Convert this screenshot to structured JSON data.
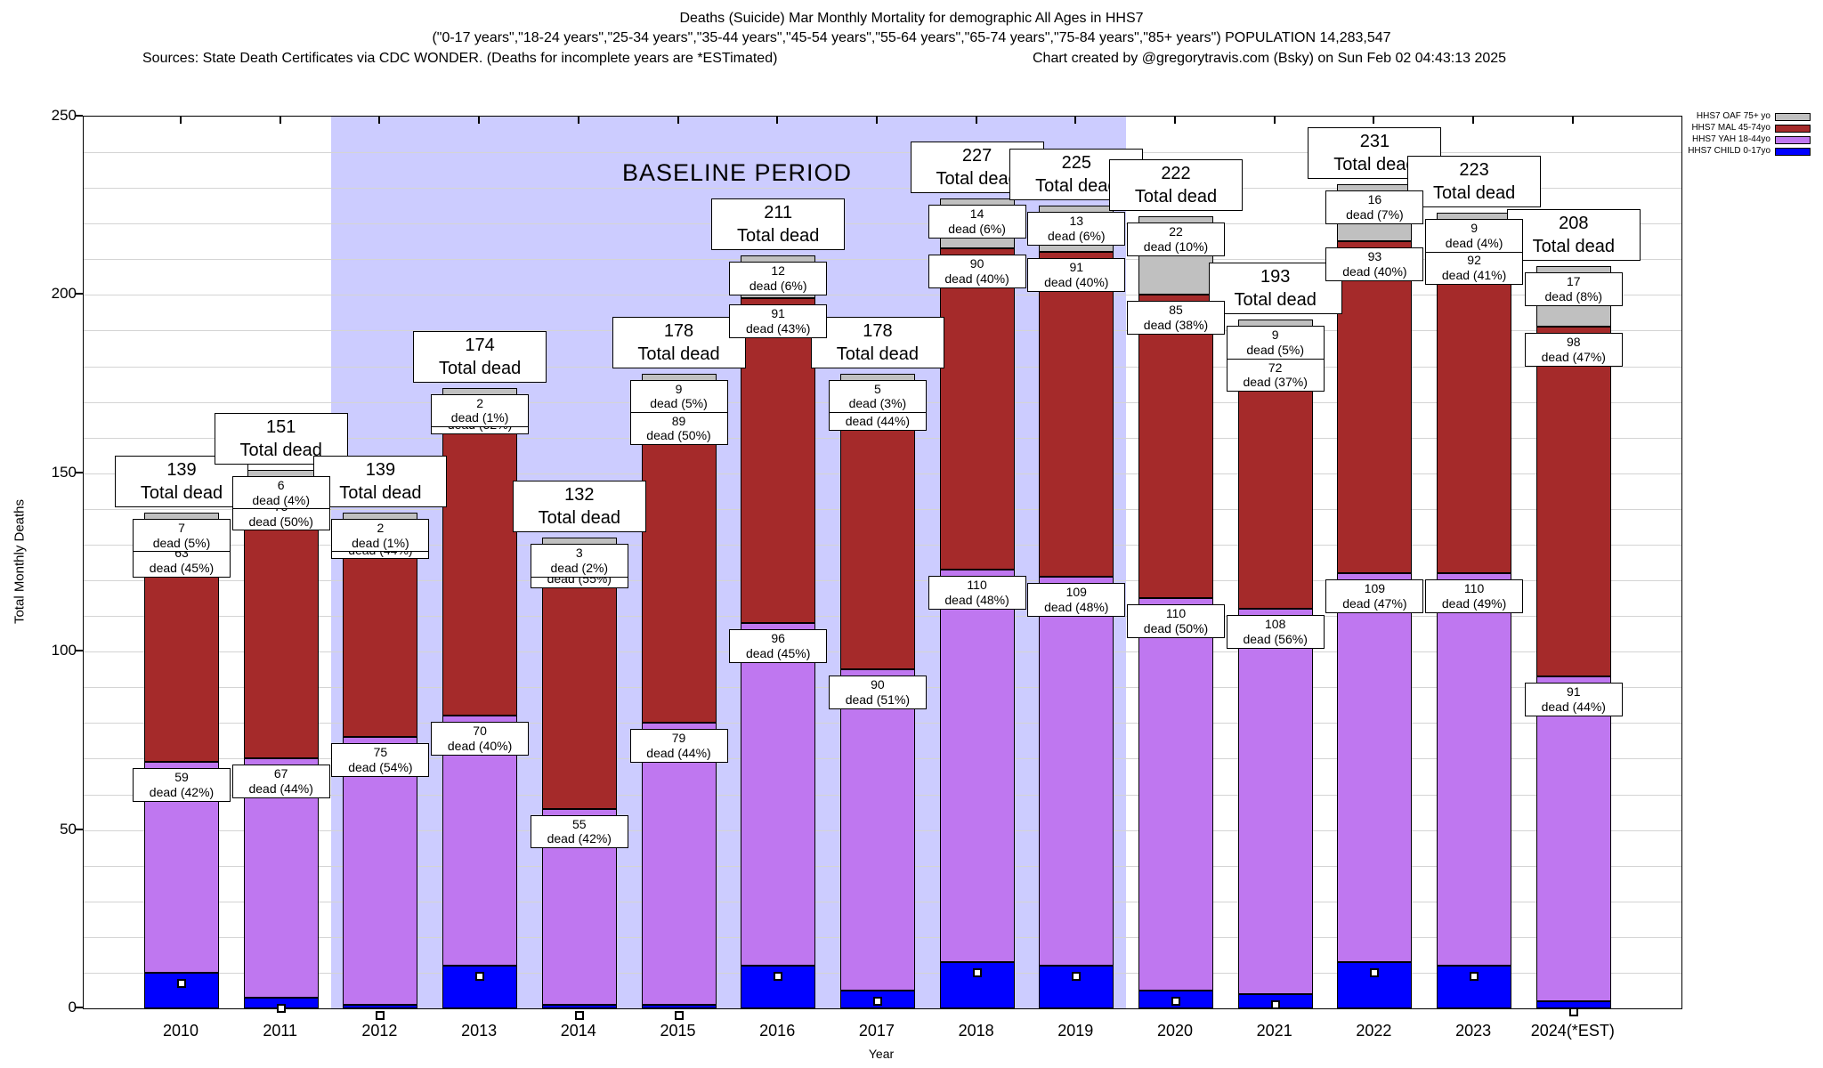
{
  "title": {
    "line1": "Deaths (Suicide) Mar Monthly Mortality for demographic All Ages in HHS7",
    "line2": "(\"0-17 years\",\"18-24 years\",\"25-34 years\",\"35-44 years\",\"45-54 years\",\"55-64 years\",\"65-74 years\",\"75-84 years\",\"85+ years\") POPULATION 14,283,547",
    "line3_left": "Sources: State Death Certificates via CDC WONDER. (Deaths for incomplete years are *ESTimated)",
    "line3_right": "Chart created by @gregorytravis.com (Bsky) on Sun Feb 02 04:43:13 2025"
  },
  "legend": {
    "items": [
      {
        "label": "HHS7 OAF 75+ yo",
        "color": "#c0c0c0"
      },
      {
        "label": "HHS7 MAL 45-74yo",
        "color": "#a52a2a"
      },
      {
        "label": "HHS7 YAH 18-44yo",
        "color": "#bf77f0"
      },
      {
        "label": "HHS7 CHILD 0-17yo",
        "color": "#0000ff"
      }
    ]
  },
  "chart_data": {
    "type": "bar",
    "stacked": true,
    "title": "Deaths (Suicide) Mar Monthly Mortality for demographic All Ages in HHS7",
    "xlabel": "Year",
    "ylabel": "Total Monthly Deaths",
    "ylim": [
      0,
      250
    ],
    "ytick_major": [
      0,
      50,
      100,
      150,
      200,
      250
    ],
    "ytick_minor_step": 10,
    "grid": true,
    "legend_position": "top-right",
    "baseline_region": {
      "label": "BASELINE PERIOD",
      "from_category": "2012",
      "to_category": "2019",
      "color": "#ccccff"
    },
    "categories": [
      "2010",
      "2011",
      "2012",
      "2013",
      "2014",
      "2015",
      "2016",
      "2017",
      "2018",
      "2019",
      "2020",
      "2021",
      "2022",
      "2023",
      "2024(*EST)"
    ],
    "totals": [
      139,
      151,
      139,
      174,
      132,
      178,
      211,
      178,
      227,
      225,
      222,
      193,
      231,
      223,
      208
    ],
    "total_label_suffix": "Total dead",
    "series": [
      {
        "name": "HHS7 CHILD 0-17yo",
        "color": "#0000ff",
        "values": [
          10,
          3,
          1,
          12,
          1,
          1,
          12,
          5,
          13,
          12,
          5,
          4,
          13,
          12,
          2
        ],
        "labels": null
      },
      {
        "name": "HHS7 YAH 18-44yo",
        "color": "#bf77f0",
        "values": [
          59,
          67,
          75,
          70,
          55,
          79,
          96,
          90,
          110,
          109,
          110,
          108,
          109,
          110,
          91
        ],
        "labels": [
          "dead (42%)",
          "dead (44%)",
          "dead (54%)",
          "dead (40%)",
          "dead (42%)",
          "dead (44%)",
          "dead (45%)",
          "dead (51%)",
          "dead (48%)",
          "dead (48%)",
          "dead (50%)",
          "dead (56%)",
          "dead (47%)",
          "dead (49%)",
          "dead (44%)"
        ]
      },
      {
        "name": "HHS7 MAL 45-74yo",
        "color": "#a52a2a",
        "values": [
          63,
          75,
          61,
          90,
          73,
          89,
          91,
          78,
          90,
          91,
          85,
          72,
          93,
          92,
          98
        ],
        "labels": [
          "dead (45%)",
          "dead (50%)",
          "dead (44%)",
          "dead (52%)",
          "dead (55%)",
          "dead (50%)",
          "dead (43%)",
          "dead (44%)",
          "dead (40%)",
          "dead (40%)",
          "dead (38%)",
          "dead (37%)",
          "dead (40%)",
          "dead (41%)",
          "dead (47%)"
        ]
      },
      {
        "name": "HHS7 OAF 75+ yo",
        "color": "#c0c0c0",
        "values": [
          7,
          6,
          2,
          2,
          3,
          9,
          12,
          5,
          14,
          13,
          22,
          9,
          16,
          9,
          17
        ],
        "labels": [
          "dead (5%)",
          "dead (4%)",
          "dead (1%)",
          "dead (1%)",
          "dead (2%)",
          "dead (5%)",
          "dead (6%)",
          "dead (3%)",
          "dead (6%)",
          "dead (6%)",
          "dead (10%)",
          "dead (5%)",
          "dead (7%)",
          "dead (4%)",
          "dead (8%)"
        ]
      }
    ],
    "point_markers": [
      7,
      0,
      -2,
      9,
      -2,
      -2,
      9,
      2,
      10,
      9,
      2,
      1,
      10,
      9,
      -1
    ]
  }
}
